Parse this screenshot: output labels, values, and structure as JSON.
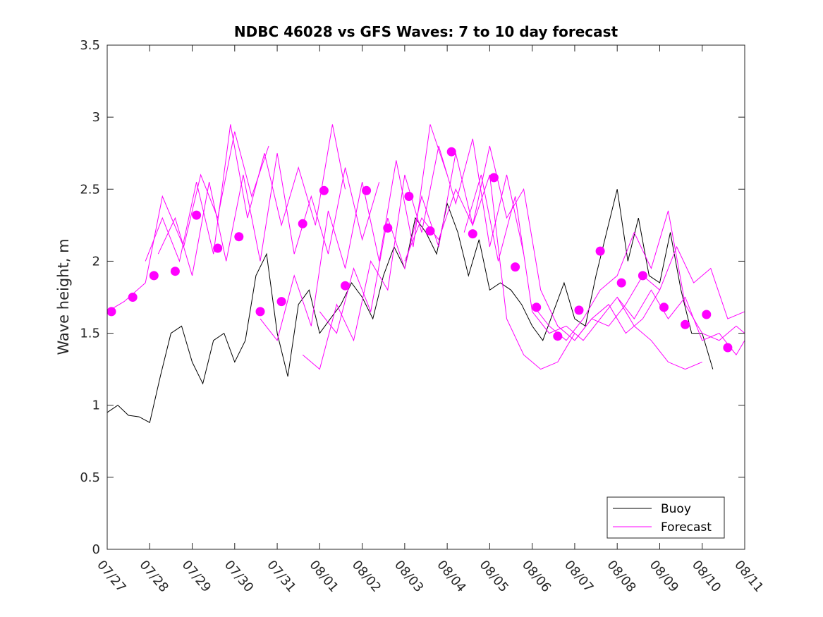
{
  "chart_data": {
    "type": "line",
    "title": "NDBC 46028 vs GFS Waves: 7 to 10 day forecast",
    "xlabel": "",
    "ylabel": "Wave height, m",
    "xlim": [
      0,
      15
    ],
    "ylim": [
      0,
      3.5
    ],
    "x_tick_labels": [
      "07/27",
      "07/28",
      "07/29",
      "07/30",
      "07/31",
      "08/01",
      "08/02",
      "08/03",
      "08/04",
      "08/05",
      "08/06",
      "08/07",
      "08/08",
      "08/09",
      "08/10",
      "08/11"
    ],
    "y_tick_labels": [
      "0",
      "0.5",
      "1",
      "1.5",
      "2",
      "2.5",
      "3",
      "3.5"
    ],
    "x_unit_note": "days since 07/27",
    "grid": false,
    "legend_position": "bottom-right",
    "colors": {
      "buoy": "#000000",
      "forecast": "#ff00ff",
      "axes": "#262626"
    },
    "legend": [
      {
        "name": "Buoy",
        "color": "#000000"
      },
      {
        "name": "Forecast",
        "color": "#ff00ff"
      }
    ],
    "series": [
      {
        "name": "Buoy",
        "kind": "line",
        "x": [
          0,
          0.25,
          0.5,
          0.75,
          1.0,
          1.25,
          1.5,
          1.75,
          2.0,
          2.25,
          2.5,
          2.75,
          3.0,
          3.25,
          3.5,
          3.75,
          4.0,
          4.25,
          4.5,
          4.75,
          5.0,
          5.25,
          5.5,
          5.75,
          6.0,
          6.25,
          6.5,
          6.75,
          7.0,
          7.25,
          7.5,
          7.75,
          8.0,
          8.25,
          8.5,
          8.75,
          9.0,
          9.25,
          9.5,
          9.75,
          10.0,
          10.25,
          10.5,
          10.75,
          11.0,
          11.25,
          11.5,
          11.75,
          12.0,
          12.25,
          12.5,
          12.75,
          13.0,
          13.25,
          13.5,
          13.75,
          14.0,
          14.25
        ],
        "y": [
          0.95,
          1.0,
          0.93,
          0.92,
          0.88,
          1.2,
          1.5,
          1.55,
          1.3,
          1.15,
          1.45,
          1.5,
          1.3,
          1.45,
          1.9,
          2.05,
          1.5,
          1.2,
          1.7,
          1.8,
          1.5,
          1.6,
          1.7,
          1.85,
          1.75,
          1.6,
          1.9,
          2.1,
          1.95,
          2.3,
          2.2,
          2.05,
          2.4,
          2.2,
          1.9,
          2.15,
          1.8,
          1.85,
          1.8,
          1.7,
          1.55,
          1.45,
          1.65,
          1.85,
          1.6,
          1.55,
          1.9,
          2.2,
          2.5,
          2.0,
          2.3,
          1.9,
          1.85,
          2.2,
          1.8,
          1.5,
          1.5,
          1.25
        ]
      },
      {
        "name": "Forecast",
        "kind": "lines",
        "runs": [
          {
            "x": [
              0,
              0.4,
              0.9,
              1.3,
              1.8,
              2.2,
              2.6,
              3.0,
              3.4,
              3.8
            ],
            "y": [
              1.65,
              1.72,
              1.85,
              2.45,
              2.1,
              2.6,
              2.3,
              2.9,
              2.45,
              2.8
            ]
          },
          {
            "x": [
              0.9,
              1.3,
              1.7,
              2.1,
              2.5,
              2.9,
              3.3,
              3.7,
              4.1,
              4.5,
              4.9,
              5.3,
              5.6
            ],
            "y": [
              2.0,
              2.3,
              2.0,
              2.55,
              2.05,
              2.95,
              2.3,
              2.75,
              2.25,
              2.65,
              2.25,
              2.95,
              2.5
            ]
          },
          {
            "x": [
              1.2,
              1.6,
              2.0,
              2.4,
              2.8,
              3.2,
              3.6,
              4.0,
              4.4,
              4.8,
              5.2,
              5.6,
              6.0,
              6.4
            ],
            "y": [
              2.05,
              2.3,
              1.9,
              2.55,
              2.0,
              2.6,
              2.0,
              2.75,
              2.05,
              2.45,
              2.05,
              2.65,
              2.15,
              2.55
            ]
          },
          {
            "x": [
              3.6,
              4.0,
              4.4,
              4.8,
              5.2,
              5.6,
              6.0,
              6.4,
              6.8,
              7.2,
              7.6,
              8.0
            ],
            "y": [
              1.6,
              1.45,
              1.9,
              1.55,
              2.35,
              1.95,
              2.55,
              2.0,
              2.7,
              2.1,
              2.95,
              2.6
            ]
          },
          {
            "x": [
              4.6,
              5.0,
              5.4,
              5.8,
              6.2,
              6.6,
              7.0,
              7.4,
              7.8,
              8.2,
              8.6,
              9.0,
              9.4,
              9.8
            ],
            "y": [
              1.35,
              1.25,
              1.7,
              1.45,
              2.0,
              1.8,
              2.6,
              2.2,
              2.8,
              2.4,
              2.85,
              2.1,
              2.6,
              2.05
            ]
          },
          {
            "x": [
              5.0,
              5.4,
              5.8,
              6.2,
              6.6,
              7.0,
              7.4,
              7.8,
              8.2,
              8.6,
              9.0,
              9.4,
              9.8,
              10.2,
              10.6,
              11.0
            ],
            "y": [
              1.65,
              1.5,
              1.95,
              1.65,
              2.3,
              1.95,
              2.45,
              2.1,
              2.75,
              2.25,
              2.6,
              1.6,
              1.35,
              1.25,
              1.3,
              1.5
            ]
          },
          {
            "x": [
              7.0,
              7.4,
              7.8,
              8.2,
              8.6,
              9.0,
              9.4,
              9.8,
              10.2,
              10.6,
              11.0,
              11.4,
              11.8,
              12.2,
              12.6,
              13.0
            ],
            "y": [
              2.0,
              2.3,
              2.15,
              2.5,
              2.25,
              2.8,
              2.3,
              2.5,
              1.8,
              1.55,
              1.45,
              1.6,
              1.7,
              1.5,
              1.6,
              1.8
            ]
          },
          {
            "x": [
              8.4,
              8.8,
              9.2,
              9.6,
              10.0,
              10.4,
              10.8,
              11.2,
              11.6,
              12.0,
              12.4,
              12.8,
              13.2,
              13.6,
              14.0
            ],
            "y": [
              2.2,
              2.6,
              2.0,
              2.45,
              1.65,
              1.5,
              1.55,
              1.45,
              1.6,
              1.75,
              1.55,
              1.45,
              1.3,
              1.25,
              1.3
            ]
          },
          {
            "x": [
              10.0,
              10.4,
              10.8,
              11.2,
              11.6,
              12.0,
              12.4,
              12.8,
              13.2,
              13.6,
              14.0,
              14.4,
              14.8,
              15.0
            ],
            "y": [
              1.7,
              1.55,
              1.45,
              1.6,
              1.8,
              1.9,
              2.2,
              1.95,
              2.35,
              1.7,
              1.5,
              1.45,
              1.55,
              1.5
            ]
          },
          {
            "x": [
              11.0,
              11.4,
              11.8,
              12.2,
              12.6,
              13.0,
              13.4,
              13.8,
              14.2,
              14.6,
              15.0
            ],
            "y": [
              1.45,
              1.6,
              1.55,
              1.7,
              1.9,
              1.8,
              2.1,
              1.85,
              1.95,
              1.6,
              1.65
            ]
          },
          {
            "x": [
              12.0,
              12.4,
              12.8,
              13.2,
              13.6,
              14.0,
              14.4,
              14.8,
              15.0
            ],
            "y": [
              1.75,
              1.6,
              1.8,
              1.6,
              1.75,
              1.45,
              1.5,
              1.35,
              1.45
            ]
          }
        ]
      },
      {
        "name": "Forecast",
        "kind": "markers",
        "x": [
          0.1,
          0.6,
          1.1,
          1.6,
          2.1,
          2.6,
          3.1,
          3.6,
          4.1,
          4.6,
          5.1,
          5.6,
          6.1,
          6.6,
          7.1,
          7.6,
          8.1,
          8.6,
          9.1,
          9.6,
          10.1,
          10.6,
          11.1,
          11.6,
          12.1,
          12.6,
          13.1,
          13.6,
          14.1,
          14.6
        ],
        "y": [
          1.65,
          1.75,
          1.9,
          1.93,
          2.32,
          2.09,
          2.17,
          1.65,
          1.72,
          2.26,
          2.49,
          1.83,
          2.49,
          2.23,
          2.45,
          2.21,
          2.76,
          2.19,
          2.58,
          1.96,
          1.68,
          1.48,
          1.66,
          2.07,
          1.85,
          1.9,
          1.68,
          1.56,
          1.63,
          1.4
        ]
      }
    ]
  }
}
